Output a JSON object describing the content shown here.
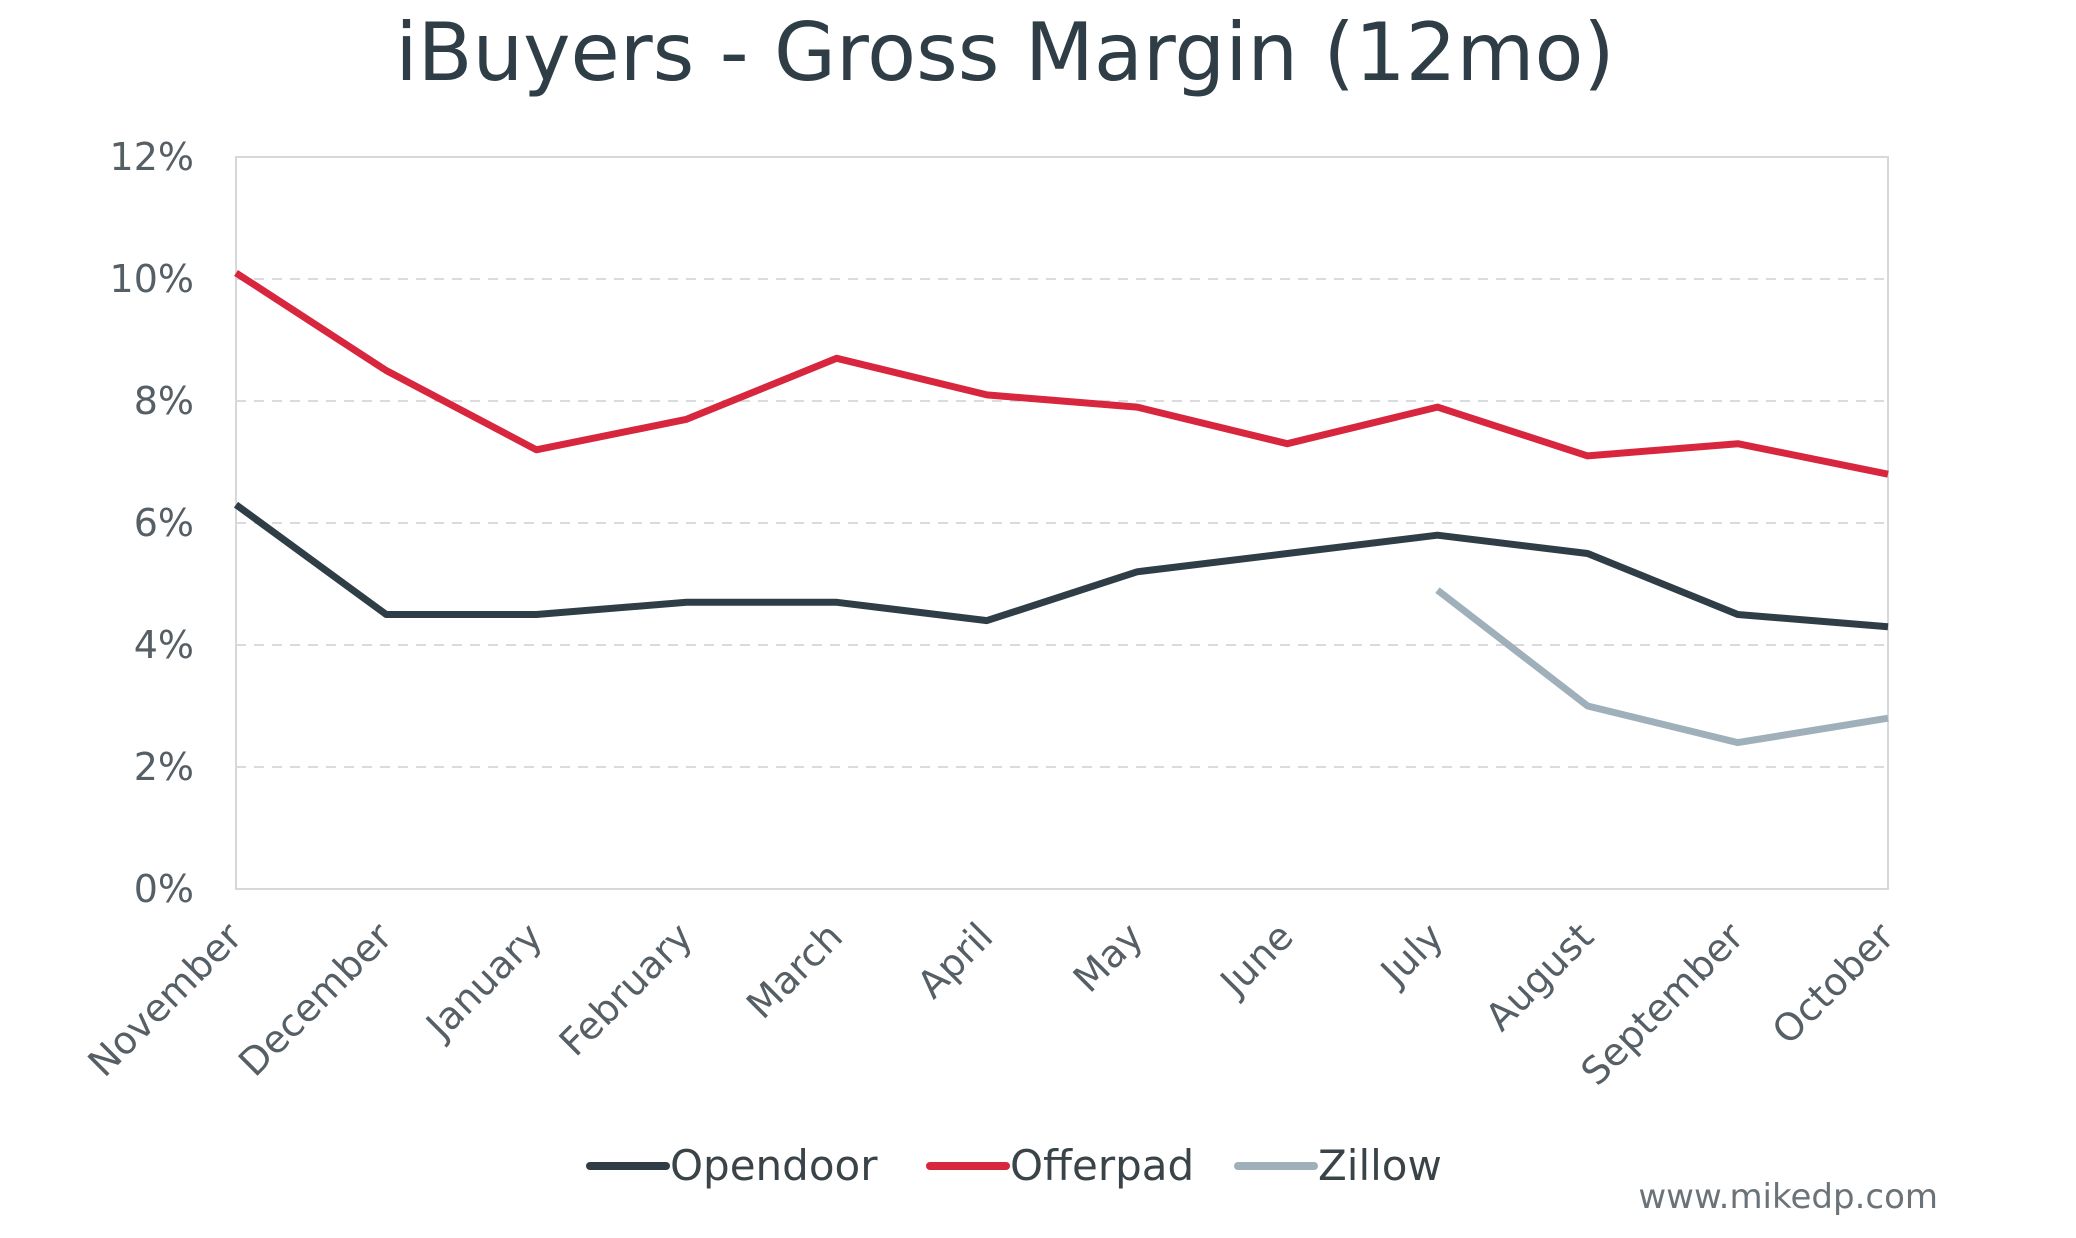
{
  "chart_data": {
    "type": "line",
    "title": "iBuyers - Gross Margin (12mo)",
    "xlabel": "",
    "ylabel": "",
    "categories": [
      "November",
      "December",
      "January",
      "February",
      "March",
      "April",
      "May",
      "June",
      "July",
      "August",
      "September",
      "October"
    ],
    "ylim": [
      0,
      12
    ],
    "yticks": [
      0,
      2,
      4,
      6,
      8,
      10,
      12
    ],
    "ytick_labels": [
      "0%",
      "2%",
      "4%",
      "6%",
      "8%",
      "10%",
      "12%"
    ],
    "grid": "horizontal-dashed",
    "legend_position": "bottom",
    "series": [
      {
        "name": "Opendoor",
        "color": "#2f3e46",
        "values": [
          6.3,
          4.5,
          4.5,
          4.7,
          4.7,
          4.4,
          5.2,
          5.5,
          5.8,
          5.5,
          4.5,
          4.3
        ]
      },
      {
        "name": "Offerpad",
        "color": "#d7263d",
        "values": [
          10.1,
          8.5,
          7.2,
          7.7,
          8.7,
          8.1,
          7.9,
          7.3,
          7.9,
          7.1,
          7.3,
          6.8
        ]
      },
      {
        "name": "Zillow",
        "color": "#9fb0bb",
        "values": [
          null,
          null,
          null,
          null,
          null,
          null,
          null,
          null,
          4.9,
          3.0,
          2.4,
          2.8
        ]
      }
    ],
    "source": "www.mikedp.com"
  }
}
